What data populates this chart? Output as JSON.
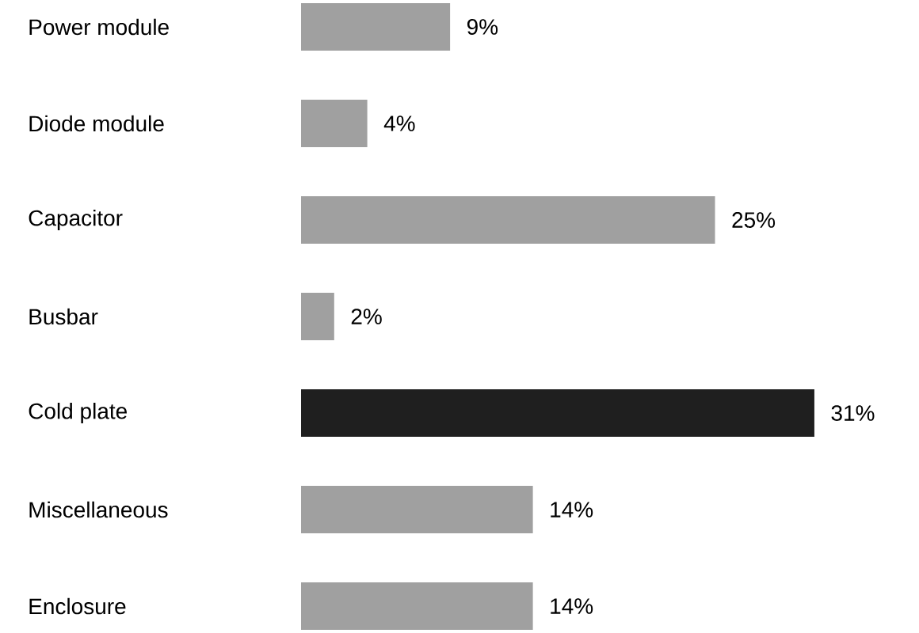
{
  "chart_data": {
    "type": "bar",
    "orientation": "horizontal",
    "categories": [
      "Power module",
      "Diode module",
      "Capacitor",
      "Busbar",
      "Cold plate",
      "Miscellaneous",
      "Enclosure"
    ],
    "values": [
      9,
      4,
      25,
      2,
      31,
      14,
      14
    ],
    "value_labels": [
      "9%",
      "4%",
      "25%",
      "2%",
      "31%",
      "14%",
      "14%"
    ],
    "colors": [
      "#a0a0a0",
      "#a0a0a0",
      "#a0a0a0",
      "#a0a0a0",
      "#1f1f1f",
      "#a0a0a0",
      "#a0a0a0"
    ]
  }
}
